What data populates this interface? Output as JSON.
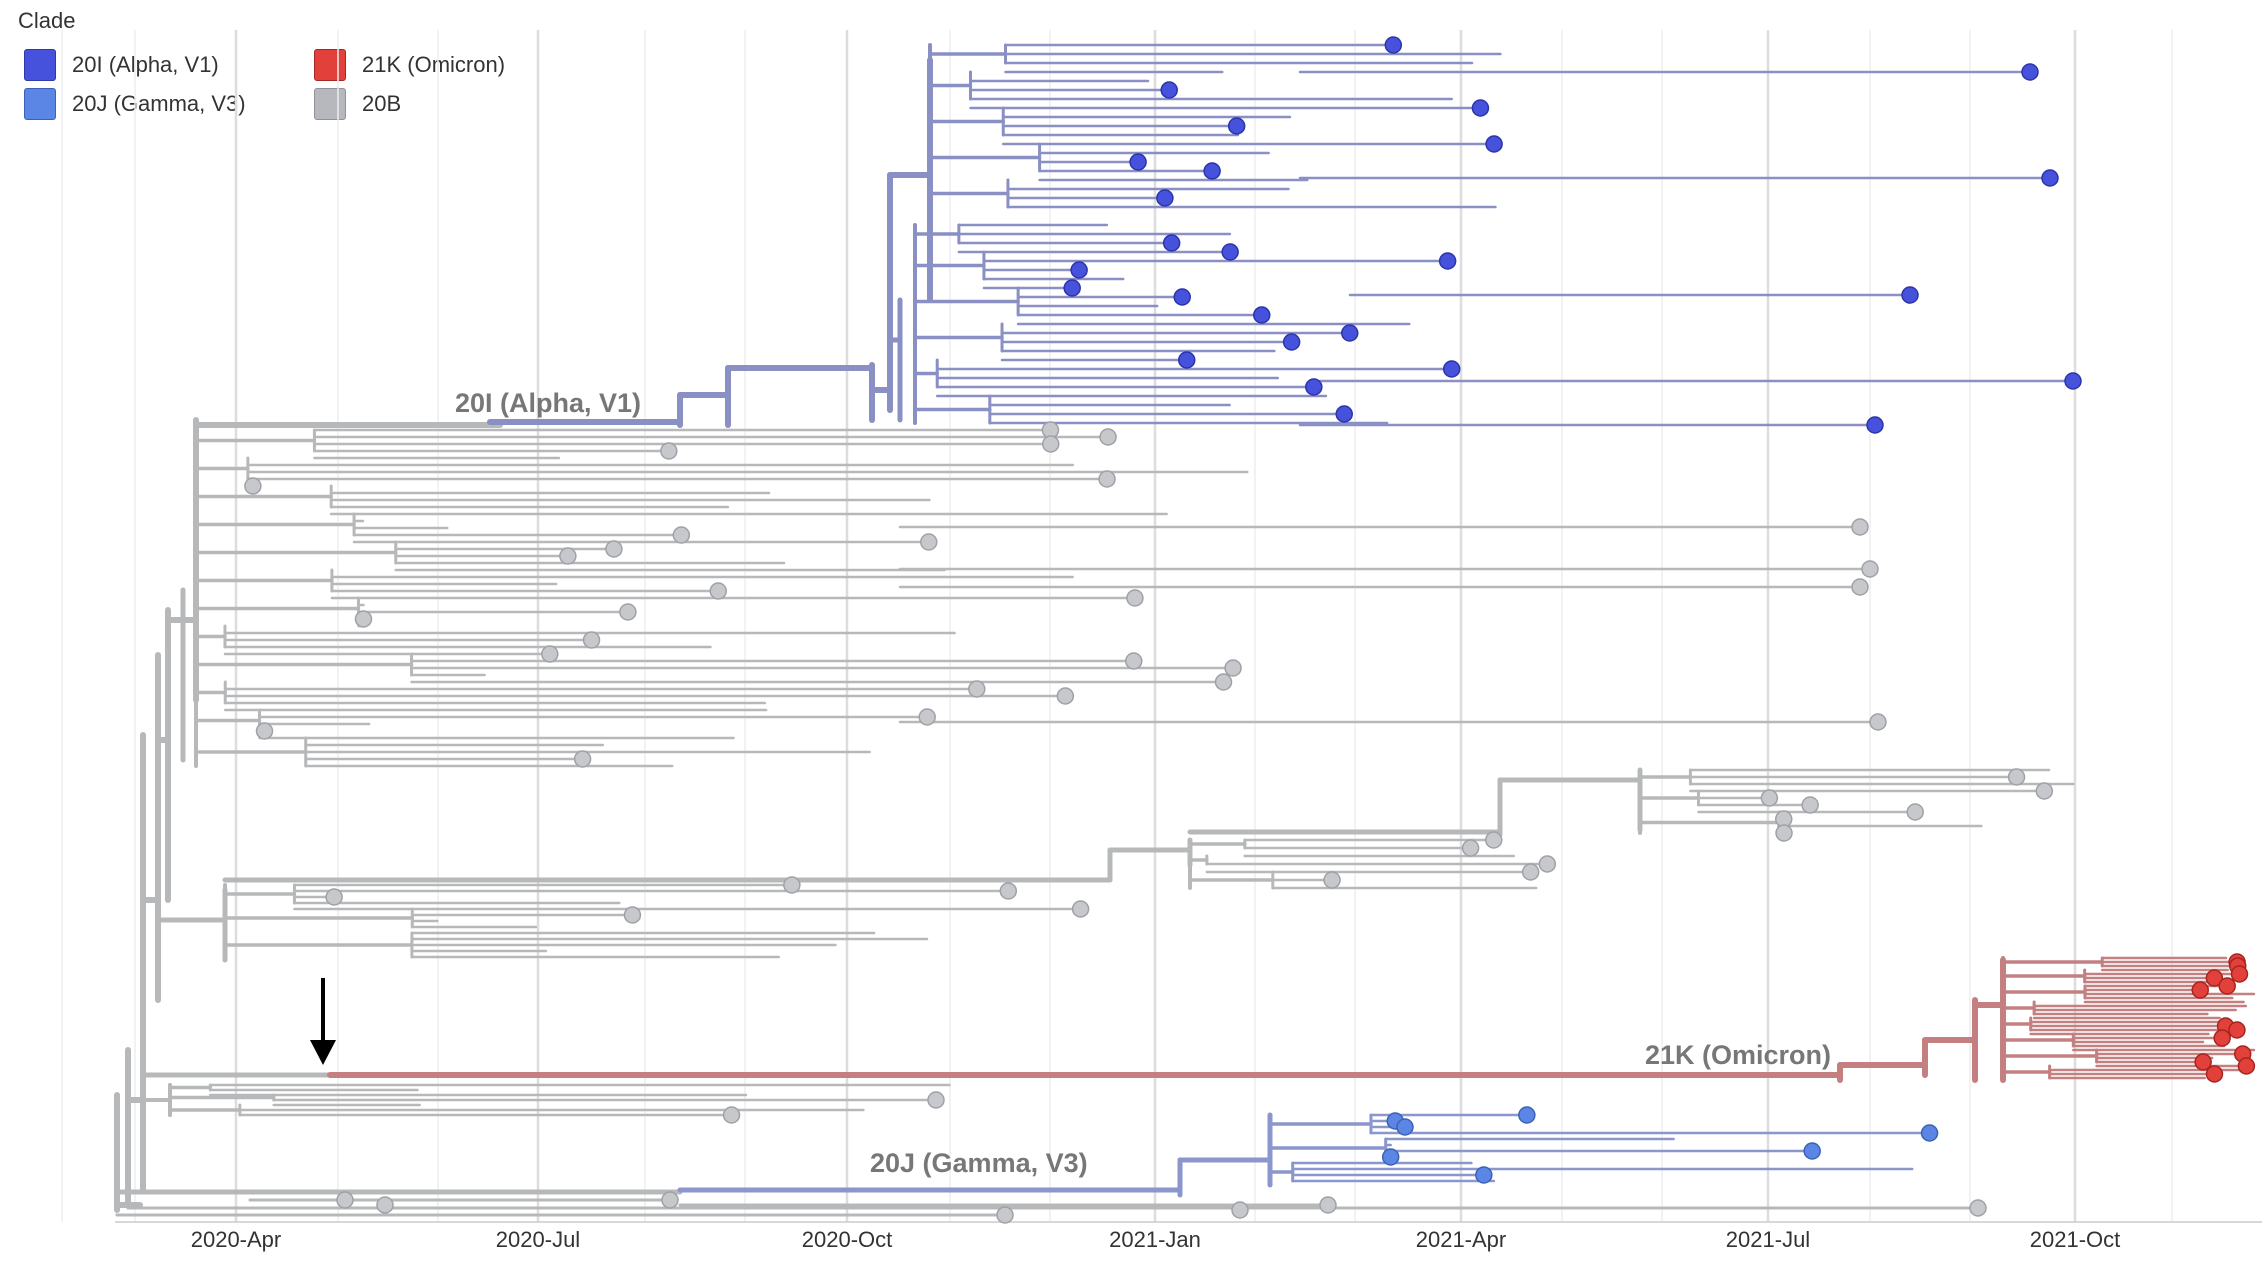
{
  "legend": {
    "title": "Clade",
    "items": [
      {
        "label": "20I (Alpha, V1)",
        "color": "#4652dc"
      },
      {
        "label": "21K (Omicron)",
        "color": "#e1403b"
      },
      {
        "label": "20J (Gamma, V3)",
        "color": "#5b86e5"
      },
      {
        "label": "20B",
        "color": "#b6b8bd"
      }
    ]
  },
  "axis": {
    "ticks": [
      "2020-Apr",
      "2020-Jul",
      "2020-Oct",
      "2021-Jan",
      "2021-Apr",
      "2021-Jul",
      "2021-Oct"
    ]
  },
  "clade_labels": {
    "alpha": "20I (Alpha, V1)",
    "omicron": "21K (Omicron)",
    "gamma": "20J (Gamma, V3)"
  },
  "colors": {
    "branch_20B": "#b7b8ba",
    "branch_alpha": "#8a8fc4",
    "branch_gamma": "#8a96cc",
    "branch_omicron": "#c48080",
    "tip_20B": "#c6c8cc",
    "tip_alpha": "#4652dc",
    "tip_gamma": "#5b86e5",
    "tip_omicron": "#e1403b",
    "gridline": "#e6e6e6",
    "arrow": "#000000"
  }
}
